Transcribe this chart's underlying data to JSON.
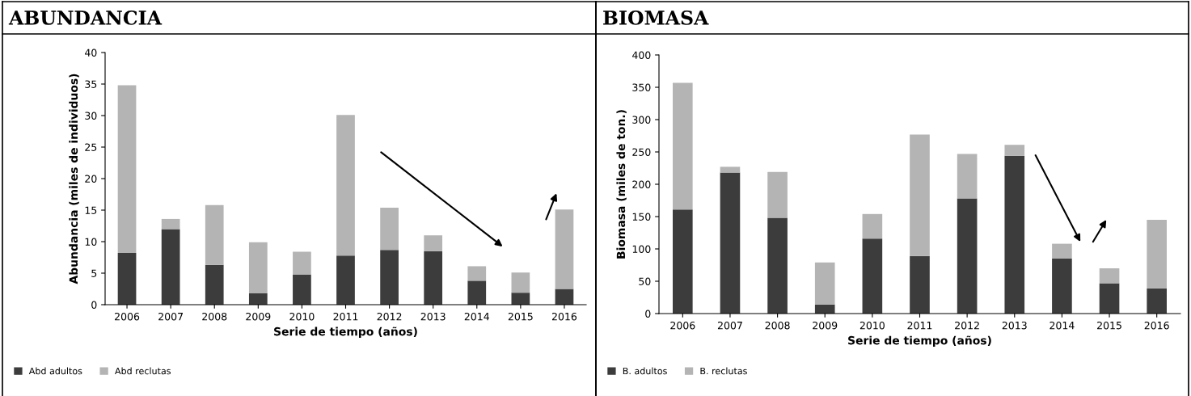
{
  "chart_data": [
    {
      "type": "bar",
      "stacked": true,
      "title": "ABUNDANCIA",
      "xlabel": "Serie de tiempo (años)",
      "ylabel": "Abundancia (miles de individuos)",
      "categories": [
        "2006",
        "2007",
        "2008",
        "2009",
        "2010",
        "2011",
        "2012",
        "2013",
        "2014",
        "2015",
        "2016"
      ],
      "series": [
        {
          "name": "Abd adultos",
          "color": "#3c3c3c",
          "values": [
            8.2,
            12,
            6.3,
            1.8,
            4.8,
            7.8,
            8.7,
            8.5,
            3.8,
            1.9,
            2.5
          ]
        },
        {
          "name": "Abd reclutas",
          "color": "#b4b4b4",
          "values": [
            26.6,
            1.6,
            9.5,
            8.1,
            3.6,
            22.3,
            6.7,
            2.5,
            2.3,
            3.2,
            12.6
          ]
        }
      ],
      "ylim": [
        0,
        40
      ],
      "yticks": [
        0,
        5,
        10,
        15,
        20,
        25,
        30,
        35,
        40
      ],
      "grid": false,
      "legend": "bottom left"
    },
    {
      "type": "bar",
      "stacked": true,
      "title": "BIOMASA",
      "xlabel": "Serie de tiempo (años)",
      "ylabel": "Biomasa (miles de ton.)",
      "categories": [
        "2006",
        "2007",
        "2008",
        "2009",
        "2010",
        "2011",
        "2012",
        "2013",
        "2014",
        "2015",
        "2016"
      ],
      "series": [
        {
          "name": "B. adultos",
          "color": "#3c3c3c",
          "values": [
            161,
            218,
            148,
            14,
            116,
            89,
            178,
            244,
            85,
            47,
            39
          ]
        },
        {
          "name": "B. reclutas",
          "color": "#b4b4b4",
          "values": [
            196,
            9,
            71,
            65,
            38,
            188,
            69,
            17,
            23,
            23,
            106
          ]
        }
      ],
      "ylim": [
        0,
        400
      ],
      "yticks": [
        0,
        50,
        100,
        150,
        200,
        250,
        300,
        350,
        400
      ],
      "grid": false,
      "legend": "bottom left"
    }
  ]
}
